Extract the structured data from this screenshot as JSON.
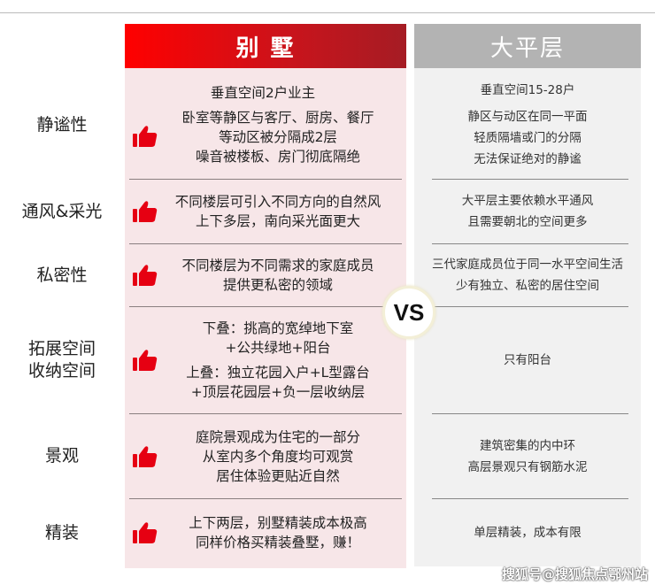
{
  "header": {
    "villa": "别 墅",
    "flat": "大平层"
  },
  "vs": "VS",
  "icons": {
    "thumb": "thumbs-up-icon",
    "thumb_color": "#e60012"
  },
  "colors": {
    "villa_header": "#e60012",
    "flat_header": "#b3b3b3",
    "villa_bg": "#f7e6e8",
    "flat_bg": "#f1f1f1"
  },
  "rows": [
    {
      "label": "静谧性",
      "villa_top": "垂直空间2户业主",
      "villa": [
        "卧室等静区与客厅、厨房、餐厅",
        "等动区被分隔成2层",
        "噪音被楼板、房门彻底隔绝"
      ],
      "flat_top": "垂直空间15-28户",
      "flat": [
        "静区与动区在同一平面",
        "轻质隔墙或门的分隔",
        "无法保证绝对的静谧"
      ]
    },
    {
      "label": "通风&采光",
      "villa": [
        "不同楼层可引入不同方向的自然风",
        "上下多层，南向采光面更大"
      ],
      "flat": [
        "大平层主要依赖水平通风",
        "且需要朝北的空间更多"
      ]
    },
    {
      "label": "私密性",
      "villa": [
        "不同楼层为不同需求的家庭成员",
        "提供更私密的领域"
      ],
      "flat": [
        "三代家庭成员位于同一水平空间生活",
        "少有独立、私密的居住空间"
      ]
    },
    {
      "label": "拓展空间\n收纳空间",
      "villa": [
        "下叠：挑高的宽绰地下室",
        "+公共绿地+阳台"
      ],
      "villa_extra": [
        "上叠：独立花园入户+L型露台",
        "+顶层花园层+负一层收纳层"
      ],
      "flat": [
        "只有阳台"
      ]
    },
    {
      "label": "景观",
      "villa": [
        "庭院景观成为住宅的一部分",
        "从室内多个角度均可观赏",
        "居住体验更贴近自然"
      ],
      "flat": [
        "建筑密集的内中环",
        "高层景观只有钢筋水泥"
      ]
    },
    {
      "label": "精装",
      "villa": [
        "上下两层，别墅精装成本极高",
        "同样价格买精装叠墅，赚！"
      ],
      "flat": [
        "单层精装，成本有限"
      ]
    }
  ],
  "watermark": "搜狐号@搜狐焦点鄂州站"
}
